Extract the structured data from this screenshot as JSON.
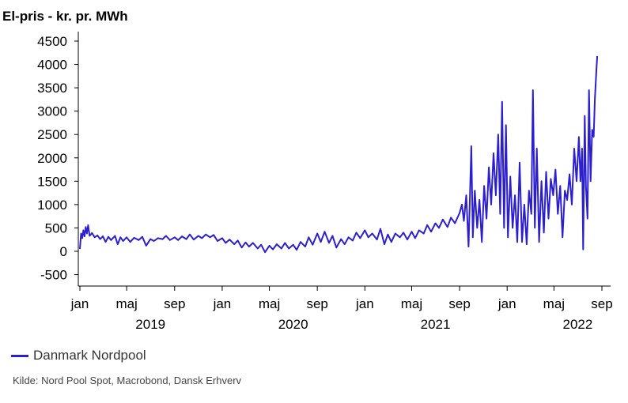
{
  "chart_data": {
    "type": "line",
    "title": "El-pris - kr. pr. MWh",
    "ylim": [
      -700,
      4600
    ],
    "yticks": [
      -500,
      0,
      500,
      1000,
      1500,
      2000,
      2500,
      3000,
      3500,
      4000,
      4500
    ],
    "xlim": [
      "2019-01-01",
      "2022-09-15"
    ],
    "xticks": [
      {
        "date": "2019-01-01",
        "label": "jan"
      },
      {
        "date": "2019-05-01",
        "label": "maj"
      },
      {
        "date": "2019-09-01",
        "label": "sep"
      },
      {
        "date": "2020-01-01",
        "label": "jan"
      },
      {
        "date": "2020-05-01",
        "label": "maj"
      },
      {
        "date": "2020-09-01",
        "label": "sep"
      },
      {
        "date": "2021-01-01",
        "label": "jan"
      },
      {
        "date": "2021-05-01",
        "label": "maj"
      },
      {
        "date": "2021-09-01",
        "label": "sep"
      },
      {
        "date": "2022-01-01",
        "label": "jan"
      },
      {
        "date": "2022-05-01",
        "label": "maj"
      },
      {
        "date": "2022-09-01",
        "label": "sep"
      }
    ],
    "years": [
      {
        "year": "2019",
        "date": "2019-07-01"
      },
      {
        "year": "2020",
        "date": "2020-07-01"
      },
      {
        "year": "2021",
        "date": "2021-07-01"
      },
      {
        "year": "2022",
        "date": "2022-07-01"
      }
    ],
    "grid": false,
    "legend_position": "bottom-left",
    "series": [
      {
        "name": "Danmark Nordpool",
        "color": "#2b1fcf",
        "points": [
          [
            "2019-01-01",
            50
          ],
          [
            "2019-01-04",
            380
          ],
          [
            "2019-01-07",
            280
          ],
          [
            "2019-01-10",
            450
          ],
          [
            "2019-01-13",
            320
          ],
          [
            "2019-01-16",
            520
          ],
          [
            "2019-01-19",
            380
          ],
          [
            "2019-01-22",
            560
          ],
          [
            "2019-01-26",
            330
          ],
          [
            "2019-02-01",
            390
          ],
          [
            "2019-02-08",
            300
          ],
          [
            "2019-02-15",
            340
          ],
          [
            "2019-02-22",
            260
          ],
          [
            "2019-03-01",
            320
          ],
          [
            "2019-03-08",
            200
          ],
          [
            "2019-03-15",
            310
          ],
          [
            "2019-03-22",
            240
          ],
          [
            "2019-04-01",
            330
          ],
          [
            "2019-04-08",
            150
          ],
          [
            "2019-04-15",
            300
          ],
          [
            "2019-04-22",
            220
          ],
          [
            "2019-05-01",
            300
          ],
          [
            "2019-05-10",
            200
          ],
          [
            "2019-05-20",
            290
          ],
          [
            "2019-06-01",
            240
          ],
          [
            "2019-06-10",
            310
          ],
          [
            "2019-06-20",
            120
          ],
          [
            "2019-07-01",
            260
          ],
          [
            "2019-07-10",
            220
          ],
          [
            "2019-07-20",
            280
          ],
          [
            "2019-08-01",
            260
          ],
          [
            "2019-08-10",
            330
          ],
          [
            "2019-08-20",
            240
          ],
          [
            "2019-09-01",
            300
          ],
          [
            "2019-09-10",
            240
          ],
          [
            "2019-09-20",
            320
          ],
          [
            "2019-10-01",
            260
          ],
          [
            "2019-10-10",
            360
          ],
          [
            "2019-10-20",
            250
          ],
          [
            "2019-11-01",
            330
          ],
          [
            "2019-11-10",
            280
          ],
          [
            "2019-11-20",
            360
          ],
          [
            "2019-12-01",
            300
          ],
          [
            "2019-12-10",
            350
          ],
          [
            "2019-12-20",
            220
          ],
          [
            "2020-01-01",
            280
          ],
          [
            "2020-01-10",
            180
          ],
          [
            "2020-01-20",
            250
          ],
          [
            "2020-02-01",
            150
          ],
          [
            "2020-02-10",
            230
          ],
          [
            "2020-02-20",
            80
          ],
          [
            "2020-03-01",
            190
          ],
          [
            "2020-03-10",
            100
          ],
          [
            "2020-03-20",
            180
          ],
          [
            "2020-04-01",
            60
          ],
          [
            "2020-04-10",
            140
          ],
          [
            "2020-04-20",
            -20
          ],
          [
            "2020-05-01",
            120
          ],
          [
            "2020-05-10",
            40
          ],
          [
            "2020-05-20",
            150
          ],
          [
            "2020-06-01",
            60
          ],
          [
            "2020-06-10",
            180
          ],
          [
            "2020-06-20",
            60
          ],
          [
            "2020-07-01",
            140
          ],
          [
            "2020-07-10",
            30
          ],
          [
            "2020-07-20",
            200
          ],
          [
            "2020-08-01",
            100
          ],
          [
            "2020-08-10",
            300
          ],
          [
            "2020-08-20",
            140
          ],
          [
            "2020-09-01",
            380
          ],
          [
            "2020-09-10",
            200
          ],
          [
            "2020-09-20",
            420
          ],
          [
            "2020-10-01",
            180
          ],
          [
            "2020-10-10",
            330
          ],
          [
            "2020-10-20",
            80
          ],
          [
            "2020-11-01",
            260
          ],
          [
            "2020-11-10",
            150
          ],
          [
            "2020-11-20",
            300
          ],
          [
            "2020-12-01",
            230
          ],
          [
            "2020-12-10",
            400
          ],
          [
            "2020-12-20",
            280
          ],
          [
            "2021-01-01",
            450
          ],
          [
            "2021-01-10",
            300
          ],
          [
            "2021-01-20",
            380
          ],
          [
            "2021-02-01",
            250
          ],
          [
            "2021-02-10",
            480
          ],
          [
            "2021-02-20",
            150
          ],
          [
            "2021-03-01",
            360
          ],
          [
            "2021-03-10",
            200
          ],
          [
            "2021-03-20",
            380
          ],
          [
            "2021-04-01",
            300
          ],
          [
            "2021-04-10",
            400
          ],
          [
            "2021-04-20",
            250
          ],
          [
            "2021-05-01",
            420
          ],
          [
            "2021-05-10",
            280
          ],
          [
            "2021-05-20",
            450
          ],
          [
            "2021-06-01",
            380
          ],
          [
            "2021-06-10",
            560
          ],
          [
            "2021-06-20",
            420
          ],
          [
            "2021-07-01",
            600
          ],
          [
            "2021-07-10",
            500
          ],
          [
            "2021-07-20",
            680
          ],
          [
            "2021-08-01",
            520
          ],
          [
            "2021-08-10",
            720
          ],
          [
            "2021-08-20",
            600
          ],
          [
            "2021-09-01",
            820
          ],
          [
            "2021-09-07",
            1000
          ],
          [
            "2021-09-12",
            650
          ],
          [
            "2021-09-18",
            1200
          ],
          [
            "2021-09-24",
            100
          ],
          [
            "2021-10-01",
            2250
          ],
          [
            "2021-10-05",
            300
          ],
          [
            "2021-10-10",
            1300
          ],
          [
            "2021-10-16",
            500
          ],
          [
            "2021-10-22",
            1100
          ],
          [
            "2021-10-28",
            200
          ],
          [
            "2021-11-03",
            1400
          ],
          [
            "2021-11-09",
            700
          ],
          [
            "2021-11-15",
            1800
          ],
          [
            "2021-11-21",
            1000
          ],
          [
            "2021-11-27",
            2100
          ],
          [
            "2021-12-03",
            1200
          ],
          [
            "2021-12-09",
            2500
          ],
          [
            "2021-12-14",
            800
          ],
          [
            "2021-12-19",
            3200
          ],
          [
            "2021-12-24",
            500
          ],
          [
            "2021-12-29",
            2700
          ],
          [
            "2022-01-03",
            300
          ],
          [
            "2022-01-09",
            1600
          ],
          [
            "2022-01-15",
            500
          ],
          [
            "2022-01-21",
            1200
          ],
          [
            "2022-01-27",
            200
          ],
          [
            "2022-02-02",
            1900
          ],
          [
            "2022-02-08",
            200
          ],
          [
            "2022-02-14",
            1000
          ],
          [
            "2022-02-20",
            150
          ],
          [
            "2022-02-26",
            1300
          ],
          [
            "2022-03-04",
            800
          ],
          [
            "2022-03-08",
            3450
          ],
          [
            "2022-03-13",
            500
          ],
          [
            "2022-03-18",
            2200
          ],
          [
            "2022-03-24",
            200
          ],
          [
            "2022-03-30",
            1500
          ],
          [
            "2022-04-05",
            400
          ],
          [
            "2022-04-11",
            1700
          ],
          [
            "2022-04-17",
            700
          ],
          [
            "2022-04-23",
            1550
          ],
          [
            "2022-04-29",
            1200
          ],
          [
            "2022-05-05",
            1750
          ],
          [
            "2022-05-11",
            800
          ],
          [
            "2022-05-17",
            1400
          ],
          [
            "2022-05-23",
            300
          ],
          [
            "2022-05-29",
            1300
          ],
          [
            "2022-06-04",
            1100
          ],
          [
            "2022-06-10",
            1650
          ],
          [
            "2022-06-16",
            1000
          ],
          [
            "2022-06-22",
            2200
          ],
          [
            "2022-06-28",
            1500
          ],
          [
            "2022-07-04",
            2450
          ],
          [
            "2022-07-08",
            1500
          ],
          [
            "2022-07-12",
            2200
          ],
          [
            "2022-07-15",
            40
          ],
          [
            "2022-07-19",
            2900
          ],
          [
            "2022-07-22",
            1400
          ],
          [
            "2022-07-26",
            700
          ],
          [
            "2022-07-30",
            3450
          ],
          [
            "2022-08-03",
            1500
          ],
          [
            "2022-08-07",
            2600
          ],
          [
            "2022-08-11",
            2450
          ],
          [
            "2022-08-14",
            3250
          ],
          [
            "2022-08-18",
            3900
          ],
          [
            "2022-08-20",
            4180
          ]
        ]
      }
    ]
  },
  "legend": {
    "label": "Danmark Nordpool"
  },
  "source": "Kilde: Nord Pool Spot, Macrobond, Dansk Erhverv"
}
